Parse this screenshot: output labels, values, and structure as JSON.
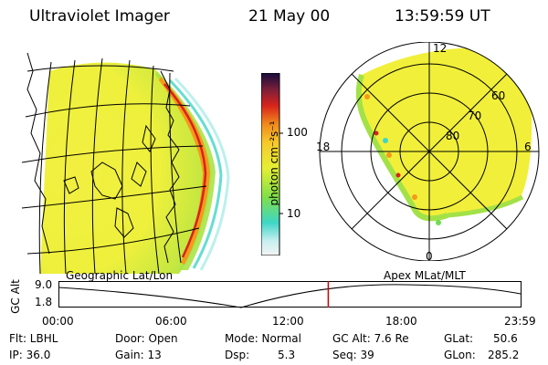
{
  "header": {
    "instrument": "Ultraviolet Imager",
    "date": "21 May 00",
    "time": "13:59:59 UT"
  },
  "colorbar": {
    "unit_label": "photon cm⁻²s⁻¹",
    "ticks": [
      "100",
      "10"
    ]
  },
  "polar_plot": {
    "mlt_labels": [
      "12",
      "18",
      "6",
      "0"
    ],
    "lat_labels": [
      "60",
      "70",
      "80"
    ]
  },
  "timeline": {
    "left_title": "Geographic Lat/Lon",
    "right_title": "Apex MLat/MLT",
    "y_axis_label": "GC Alt",
    "y_ticks": [
      "9.0",
      "1.8"
    ],
    "x_ticks": [
      "00:00",
      "06:00",
      "12:00",
      "18:00",
      "23:59"
    ],
    "marker_time_fraction": 0.583,
    "marker_color": "#cc0000"
  },
  "info": {
    "filter": "Flt: LBHL",
    "ip": "IP: 36.0",
    "door": "Door: Open",
    "gain": "Gain: 13",
    "mode": "Mode: Normal",
    "dsp_label": "Dsp:",
    "dsp_value": "5.3",
    "gc_alt": "GC Alt: 7.6 Re",
    "seq": "Seq: 39",
    "glat_label": "GLat:",
    "glat_value": "50.6",
    "glon_label": "GLon:",
    "glon_value": "285.2"
  },
  "colors": {
    "aurora_yellow": "#f3ef3a",
    "aurora_green": "#99e04a",
    "limb_red": "#d8231c",
    "limb_orange": "#f59a1a",
    "cyan": "#3ed6c6"
  }
}
